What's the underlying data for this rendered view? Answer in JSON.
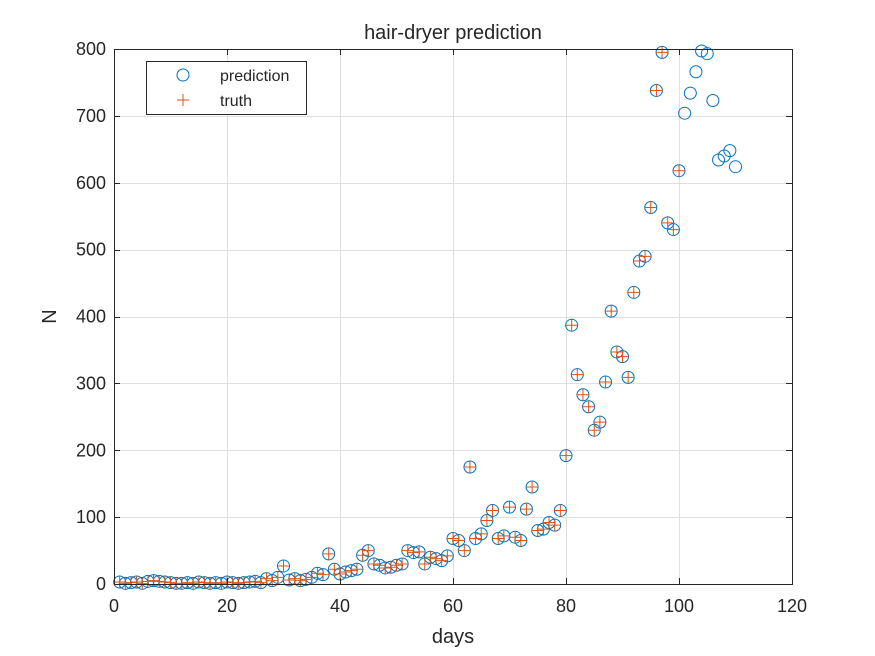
{
  "chart_data": {
    "type": "scatter",
    "title": "hair-dryer prediction",
    "xlabel": "days",
    "ylabel": "N",
    "xlim": [
      0,
      120
    ],
    "ylim": [
      0,
      800
    ],
    "xticks": [
      0,
      20,
      40,
      60,
      80,
      100,
      120
    ],
    "yticks": [
      0,
      100,
      200,
      300,
      400,
      500,
      600,
      700,
      800
    ],
    "grid": true,
    "legend_position": "top-left",
    "colors": {
      "prediction": "#0072BD",
      "truth": "#D95319",
      "grid": "#dfdfdf",
      "axis": "#262626"
    },
    "series": [
      {
        "name": "prediction",
        "marker": "circle",
        "x": [
          1,
          2,
          3,
          4,
          5,
          6,
          7,
          8,
          9,
          10,
          11,
          12,
          13,
          14,
          15,
          16,
          17,
          18,
          19,
          20,
          21,
          22,
          23,
          24,
          25,
          26,
          27,
          28,
          29,
          30,
          31,
          32,
          33,
          34,
          35,
          36,
          37,
          38,
          39,
          40,
          41,
          42,
          43,
          44,
          45,
          46,
          47,
          48,
          49,
          50,
          51,
          52,
          53,
          54,
          55,
          56,
          57,
          58,
          59,
          60,
          61,
          62,
          63,
          64,
          65,
          66,
          67,
          68,
          69,
          70,
          71,
          72,
          73,
          74,
          75,
          76,
          77,
          78,
          79,
          80,
          81,
          82,
          83,
          84,
          85,
          86,
          87,
          88,
          89,
          90,
          91,
          92,
          93,
          94,
          95,
          96,
          97,
          98,
          99,
          100,
          101,
          102,
          103,
          104,
          105,
          106,
          107,
          108,
          109,
          110
        ],
        "y": [
          3,
          1,
          2,
          3,
          1,
          4,
          5,
          4,
          3,
          2,
          1,
          1,
          2,
          1,
          3,
          2,
          1,
          2,
          1,
          3,
          2,
          1,
          2,
          3,
          4,
          2,
          8,
          5,
          10,
          27,
          6,
          8,
          5,
          7,
          10,
          16,
          14,
          45,
          22,
          15,
          18,
          20,
          22,
          43,
          50,
          30,
          28,
          24,
          25,
          28,
          30,
          50,
          47,
          48,
          30,
          40,
          38,
          35,
          42,
          68,
          65,
          50,
          175,
          68,
          75,
          95,
          110,
          68,
          72,
          115,
          70,
          65,
          112,
          145,
          80,
          82,
          92,
          88,
          110,
          192,
          387,
          313,
          283,
          265,
          230,
          242,
          302,
          408,
          347,
          340,
          309,
          436,
          483,
          490,
          563,
          738,
          795,
          540,
          530,
          618,
          704,
          734,
          766,
          797,
          793,
          723,
          634,
          640,
          648,
          624
        ]
      },
      {
        "name": "truth",
        "marker": "plus",
        "x": [
          1,
          2,
          3,
          4,
          5,
          6,
          7,
          8,
          9,
          10,
          11,
          12,
          13,
          14,
          15,
          16,
          17,
          18,
          19,
          20,
          21,
          22,
          23,
          24,
          25,
          26,
          27,
          28,
          29,
          30,
          31,
          32,
          33,
          34,
          35,
          36,
          37,
          38,
          39,
          40,
          41,
          42,
          43,
          44,
          45,
          46,
          47,
          48,
          49,
          50,
          51,
          52,
          53,
          54,
          55,
          56,
          57,
          58,
          59,
          60,
          61,
          62,
          63,
          64,
          65,
          66,
          67,
          68,
          69,
          70,
          71,
          72,
          73,
          74,
          75,
          76,
          77,
          78,
          79,
          80,
          81,
          82,
          83,
          84,
          85,
          86,
          87,
          88,
          89,
          90,
          91,
          92,
          93,
          94,
          95,
          96,
          97,
          98,
          99,
          100
        ],
        "y": [
          3,
          1,
          2,
          3,
          1,
          4,
          5,
          4,
          3,
          2,
          1,
          1,
          2,
          1,
          3,
          2,
          1,
          2,
          1,
          3,
          2,
          1,
          2,
          3,
          4,
          2,
          8,
          5,
          10,
          27,
          6,
          8,
          5,
          7,
          10,
          16,
          14,
          45,
          22,
          15,
          18,
          20,
          22,
          43,
          50,
          30,
          28,
          24,
          25,
          28,
          30,
          50,
          47,
          48,
          30,
          40,
          38,
          35,
          42,
          68,
          65,
          50,
          175,
          68,
          75,
          95,
          110,
          68,
          72,
          115,
          70,
          65,
          112,
          145,
          80,
          82,
          92,
          88,
          110,
          192,
          387,
          313,
          283,
          265,
          230,
          242,
          302,
          408,
          347,
          340,
          309,
          436,
          483,
          490,
          563,
          738,
          795,
          540,
          530,
          618
        ]
      }
    ]
  }
}
